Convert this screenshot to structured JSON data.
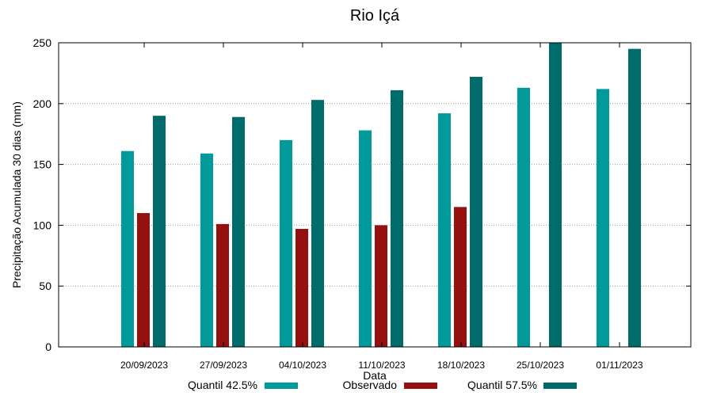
{
  "chart_data": {
    "type": "bar",
    "title": "Rio Içá",
    "xlabel": "Data",
    "ylabel": "Precipitação Acumulada 30 dias (mm)",
    "ylim": [
      0,
      250
    ],
    "yticks": [
      0,
      50,
      100,
      150,
      200,
      250
    ],
    "grid": true,
    "legend_position": "bottom",
    "categories": [
      "20/09/2023",
      "27/09/2023",
      "04/10/2023",
      "11/10/2023",
      "18/10/2023",
      "25/10/2023",
      "01/11/2023"
    ],
    "series": [
      {
        "name": "Quantil 42.5%",
        "color": "#009a9a",
        "values": [
          161,
          159,
          170,
          178,
          192,
          213,
          212
        ]
      },
      {
        "name": "Observado",
        "color": "#961010",
        "values": [
          110,
          101,
          97,
          100,
          115,
          null,
          null
        ]
      },
      {
        "name": "Quantil 57.5%",
        "color": "#006b6b",
        "values": [
          190,
          189,
          203,
          211,
          222,
          250,
          245
        ]
      }
    ]
  }
}
